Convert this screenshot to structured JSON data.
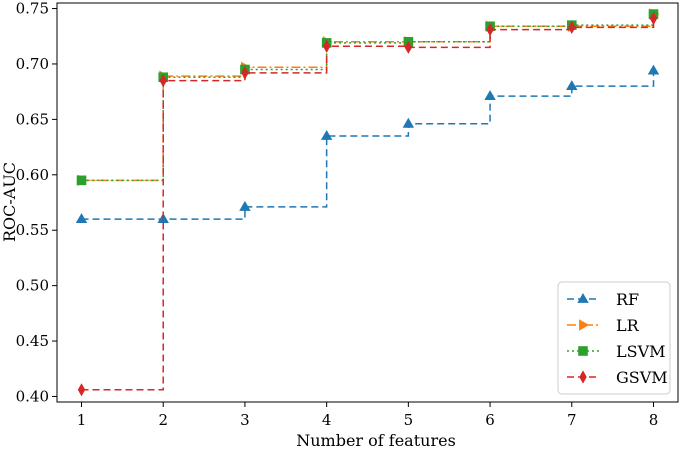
{
  "chart_data": {
    "type": "line",
    "title": "",
    "xlabel": "Number of features",
    "ylabel": "ROC-AUC",
    "x": [
      1,
      2,
      3,
      4,
      5,
      6,
      7,
      8
    ],
    "xlim": [
      0.7,
      8.3
    ],
    "ylim": [
      0.395,
      0.755
    ],
    "xticks": [
      1,
      2,
      3,
      4,
      5,
      6,
      7,
      8
    ],
    "yticks": [
      0.4,
      0.45,
      0.5,
      0.55,
      0.6,
      0.65,
      0.7,
      0.75
    ],
    "step": "post",
    "grid": false,
    "legend_position": "lower right",
    "series": [
      {
        "name": "RF",
        "values": [
          0.56,
          0.56,
          0.571,
          0.635,
          0.646,
          0.671,
          0.68,
          0.694
        ],
        "color": "#1f77b4",
        "marker": "triangle-up",
        "linestyle": "dashed"
      },
      {
        "name": "LR",
        "values": [
          0.595,
          0.689,
          0.697,
          0.72,
          0.72,
          0.734,
          0.734,
          0.745
        ],
        "color": "#ff7f0e",
        "marker": "triangle-right",
        "linestyle": "dashdot"
      },
      {
        "name": "LSVM",
        "values": [
          0.595,
          0.688,
          0.695,
          0.719,
          0.72,
          0.734,
          0.735,
          0.745
        ],
        "color": "#2ca02c",
        "marker": "square",
        "linestyle": "dotted"
      },
      {
        "name": "GSVM",
        "values": [
          0.406,
          0.685,
          0.692,
          0.716,
          0.715,
          0.731,
          0.733,
          0.741
        ],
        "color": "#d62728",
        "marker": "diamond",
        "linestyle": "dashed"
      }
    ]
  }
}
